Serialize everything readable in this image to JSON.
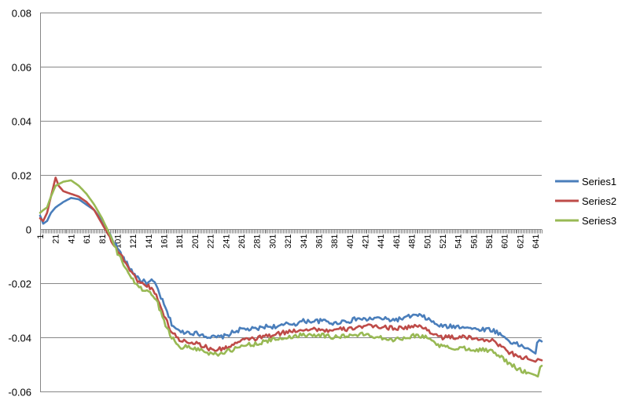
{
  "chart_data": {
    "type": "line",
    "title": "",
    "xlabel": "",
    "ylabel": "",
    "ylim": [
      -0.06,
      0.08
    ],
    "yticks": [
      "0.08",
      "0.06",
      "0.04",
      "0.02",
      "0",
      "-0.02",
      "-0.04",
      "-0.06"
    ],
    "xlim": [
      1,
      649
    ],
    "xticks": [
      "1",
      "21",
      "41",
      "61",
      "81",
      "101",
      "121",
      "141",
      "161",
      "181",
      "201",
      "221",
      "241",
      "261",
      "281",
      "301",
      "321",
      "341",
      "361",
      "381",
      "401",
      "421",
      "441",
      "461",
      "481",
      "501",
      "521",
      "541",
      "561",
      "581",
      "601",
      "621",
      "641"
    ],
    "grid": true,
    "legend": "right",
    "series": [
      {
        "name": "Series1",
        "color": "#4a7ebb",
        "points": [
          [
            1,
            0.005
          ],
          [
            5,
            0.002
          ],
          [
            10,
            0.003
          ],
          [
            15,
            0.006
          ],
          [
            21,
            0.008
          ],
          [
            31,
            0.01
          ],
          [
            41,
            0.0115
          ],
          [
            51,
            0.011
          ],
          [
            61,
            0.009
          ],
          [
            71,
            0.007
          ],
          [
            81,
            0.003
          ],
          [
            91,
            -0.002
          ],
          [
            101,
            -0.007
          ],
          [
            111,
            -0.012
          ],
          [
            121,
            -0.016
          ],
          [
            131,
            -0.019
          ],
          [
            141,
            -0.02
          ],
          [
            145,
            -0.019
          ],
          [
            151,
            -0.021
          ],
          [
            161,
            -0.028
          ],
          [
            171,
            -0.035
          ],
          [
            181,
            -0.038
          ],
          [
            191,
            -0.038
          ],
          [
            201,
            -0.0385
          ],
          [
            211,
            -0.039
          ],
          [
            221,
            -0.04
          ],
          [
            231,
            -0.04
          ],
          [
            241,
            -0.0395
          ],
          [
            251,
            -0.038
          ],
          [
            261,
            -0.037
          ],
          [
            271,
            -0.037
          ],
          [
            281,
            -0.037
          ],
          [
            291,
            -0.036
          ],
          [
            301,
            -0.036
          ],
          [
            311,
            -0.036
          ],
          [
            321,
            -0.035
          ],
          [
            331,
            -0.035
          ],
          [
            341,
            -0.034
          ],
          [
            351,
            -0.034
          ],
          [
            361,
            -0.034
          ],
          [
            371,
            -0.034
          ],
          [
            381,
            -0.035
          ],
          [
            391,
            -0.034
          ],
          [
            401,
            -0.034
          ],
          [
            411,
            -0.033
          ],
          [
            421,
            -0.0335
          ],
          [
            431,
            -0.033
          ],
          [
            441,
            -0.033
          ],
          [
            451,
            -0.0335
          ],
          [
            461,
            -0.0335
          ],
          [
            471,
            -0.033
          ],
          [
            481,
            -0.032
          ],
          [
            491,
            -0.032
          ],
          [
            501,
            -0.033
          ],
          [
            511,
            -0.035
          ],
          [
            521,
            -0.036
          ],
          [
            531,
            -0.036
          ],
          [
            541,
            -0.036
          ],
          [
            551,
            -0.036
          ],
          [
            561,
            -0.037
          ],
          [
            571,
            -0.037
          ],
          [
            581,
            -0.037
          ],
          [
            591,
            -0.038
          ],
          [
            601,
            -0.04
          ],
          [
            611,
            -0.042
          ],
          [
            621,
            -0.043
          ],
          [
            631,
            -0.044
          ],
          [
            636,
            -0.045
          ],
          [
            641,
            -0.046
          ],
          [
            643,
            -0.042
          ],
          [
            646,
            -0.041
          ],
          [
            649,
            -0.0415
          ]
        ]
      },
      {
        "name": "Series2",
        "color": "#be4b48",
        "points": [
          [
            1,
            0.004
          ],
          [
            5,
            0.003
          ],
          [
            10,
            0.006
          ],
          [
            15,
            0.012
          ],
          [
            21,
            0.019
          ],
          [
            25,
            0.016
          ],
          [
            31,
            0.014
          ],
          [
            41,
            0.013
          ],
          [
            51,
            0.012
          ],
          [
            61,
            0.01
          ],
          [
            71,
            0.007
          ],
          [
            81,
            0.002
          ],
          [
            91,
            -0.003
          ],
          [
            101,
            -0.008
          ],
          [
            111,
            -0.012
          ],
          [
            121,
            -0.017
          ],
          [
            131,
            -0.02
          ],
          [
            141,
            -0.021
          ],
          [
            151,
            -0.024
          ],
          [
            161,
            -0.032
          ],
          [
            171,
            -0.038
          ],
          [
            181,
            -0.041
          ],
          [
            191,
            -0.0415
          ],
          [
            201,
            -0.042
          ],
          [
            211,
            -0.043
          ],
          [
            221,
            -0.0445
          ],
          [
            231,
            -0.0445
          ],
          [
            241,
            -0.044
          ],
          [
            251,
            -0.0425
          ],
          [
            261,
            -0.0415
          ],
          [
            271,
            -0.0405
          ],
          [
            281,
            -0.0405
          ],
          [
            291,
            -0.0395
          ],
          [
            301,
            -0.0395
          ],
          [
            311,
            -0.0385
          ],
          [
            321,
            -0.038
          ],
          [
            331,
            -0.0375
          ],
          [
            341,
            -0.037
          ],
          [
            351,
            -0.037
          ],
          [
            361,
            -0.037
          ],
          [
            371,
            -0.0375
          ],
          [
            381,
            -0.0375
          ],
          [
            391,
            -0.037
          ],
          [
            401,
            -0.037
          ],
          [
            411,
            -0.036
          ],
          [
            421,
            -0.036
          ],
          [
            431,
            -0.036
          ],
          [
            441,
            -0.036
          ],
          [
            451,
            -0.0365
          ],
          [
            461,
            -0.0365
          ],
          [
            471,
            -0.0365
          ],
          [
            481,
            -0.036
          ],
          [
            491,
            -0.036
          ],
          [
            501,
            -0.037
          ],
          [
            511,
            -0.039
          ],
          [
            521,
            -0.04
          ],
          [
            531,
            -0.04
          ],
          [
            541,
            -0.04
          ],
          [
            551,
            -0.04
          ],
          [
            561,
            -0.0405
          ],
          [
            571,
            -0.0405
          ],
          [
            581,
            -0.041
          ],
          [
            591,
            -0.042
          ],
          [
            601,
            -0.0445
          ],
          [
            611,
            -0.046
          ],
          [
            621,
            -0.047
          ],
          [
            631,
            -0.048
          ],
          [
            641,
            -0.049
          ],
          [
            644,
            -0.048
          ],
          [
            649,
            -0.0485
          ]
        ]
      },
      {
        "name": "Series3",
        "color": "#98b954",
        "points": [
          [
            1,
            0.006
          ],
          [
            5,
            0.007
          ],
          [
            10,
            0.008
          ],
          [
            15,
            0.012
          ],
          [
            21,
            0.016
          ],
          [
            31,
            0.0175
          ],
          [
            41,
            0.018
          ],
          [
            51,
            0.016
          ],
          [
            61,
            0.013
          ],
          [
            71,
            0.009
          ],
          [
            81,
            0.004
          ],
          [
            91,
            -0.002
          ],
          [
            101,
            -0.009
          ],
          [
            111,
            -0.014
          ],
          [
            121,
            -0.019
          ],
          [
            131,
            -0.022
          ],
          [
            141,
            -0.023
          ],
          [
            151,
            -0.026
          ],
          [
            161,
            -0.034
          ],
          [
            171,
            -0.04
          ],
          [
            181,
            -0.0435
          ],
          [
            191,
            -0.0435
          ],
          [
            201,
            -0.044
          ],
          [
            211,
            -0.045
          ],
          [
            221,
            -0.046
          ],
          [
            231,
            -0.046
          ],
          [
            241,
            -0.0455
          ],
          [
            251,
            -0.0445
          ],
          [
            261,
            -0.0435
          ],
          [
            271,
            -0.0425
          ],
          [
            281,
            -0.0425
          ],
          [
            291,
            -0.0415
          ],
          [
            301,
            -0.041
          ],
          [
            311,
            -0.0405
          ],
          [
            321,
            -0.04
          ],
          [
            331,
            -0.0395
          ],
          [
            341,
            -0.039
          ],
          [
            351,
            -0.039
          ],
          [
            361,
            -0.039
          ],
          [
            371,
            -0.0395
          ],
          [
            381,
            -0.04
          ],
          [
            391,
            -0.0395
          ],
          [
            401,
            -0.0395
          ],
          [
            411,
            -0.039
          ],
          [
            421,
            -0.039
          ],
          [
            431,
            -0.0395
          ],
          [
            441,
            -0.04
          ],
          [
            451,
            -0.0405
          ],
          [
            461,
            -0.041
          ],
          [
            471,
            -0.04
          ],
          [
            481,
            -0.0395
          ],
          [
            491,
            -0.0395
          ],
          [
            501,
            -0.04
          ],
          [
            511,
            -0.042
          ],
          [
            521,
            -0.0435
          ],
          [
            531,
            -0.044
          ],
          [
            541,
            -0.044
          ],
          [
            551,
            -0.044
          ],
          [
            561,
            -0.0445
          ],
          [
            571,
            -0.0445
          ],
          [
            581,
            -0.045
          ],
          [
            591,
            -0.046
          ],
          [
            601,
            -0.0485
          ],
          [
            611,
            -0.0505
          ],
          [
            621,
            -0.052
          ],
          [
            631,
            -0.053
          ],
          [
            641,
            -0.054
          ],
          [
            644,
            -0.0545
          ],
          [
            647,
            -0.051
          ],
          [
            649,
            -0.0505
          ]
        ]
      }
    ]
  }
}
